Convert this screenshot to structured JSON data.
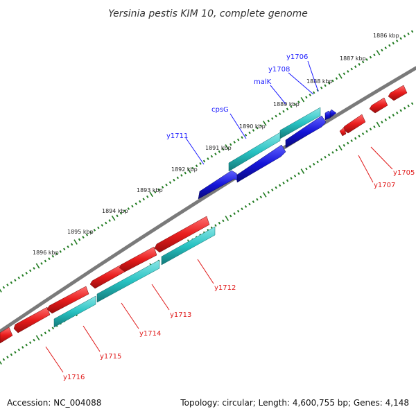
{
  "title": "Yersinia pestis KIM 10, complete genome",
  "footer": {
    "accession": "Accession: NC_004088",
    "topology": "Topology: circular; Length: 4,600,755 bp; Genes: 4,148"
  },
  "scale_labels": [
    "1886 kbp",
    "1887 kbp",
    "1888 kbp",
    "1889 kbp",
    "1890 kbp",
    "1891 kbp",
    "1892 kbp",
    "1893 kbp",
    "1894 kbp",
    "1895 kbp",
    "1896 kbp"
  ],
  "top_gene_labels": [
    "y1706",
    "y1708",
    "malK",
    "cpsG",
    "y1711"
  ],
  "bottom_gene_labels": [
    "y1705",
    "y1707",
    "y1712",
    "y1713",
    "y1714",
    "y1715",
    "y1716"
  ],
  "colors": {
    "backbone": "#7a7a7a",
    "ticks": "#1f7a1f",
    "forward_gene": "#1414d8",
    "reverse_gene": "#e81c1c",
    "orf": "#27c2c2",
    "label_forward": "#1a1aff",
    "label_reverse": "#e01818"
  }
}
